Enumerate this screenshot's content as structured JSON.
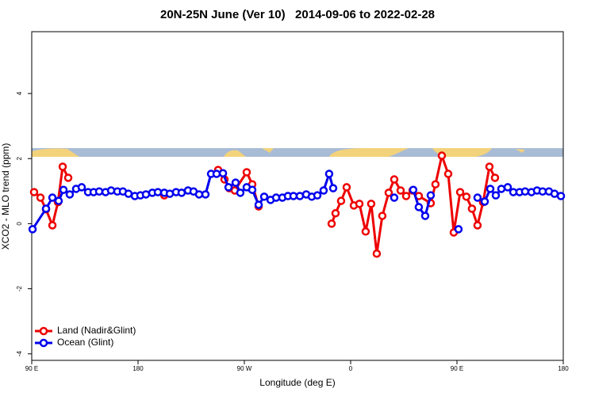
{
  "chart_data": {
    "type": "line",
    "title": "20N-25N June (Ver 10)   2014-09-06 to 2022-02-28",
    "x_label": "Longitude (deg E)",
    "y_label": "XCO2 - MLO trend (ppm)",
    "xlim": [
      -270,
      180
    ],
    "ylim": [
      -4.2,
      5.9
    ],
    "xticks": [
      {
        "value": -270,
        "label": "90 E"
      },
      {
        "value": -180,
        "label": "180"
      },
      {
        "value": -90,
        "label": "90 W"
      },
      0,
      {
        "value": 90,
        "label": "90 E"
      },
      180
    ],
    "yticks": [
      -4,
      -2,
      0,
      2,
      4
    ],
    "legend": "bottomleft",
    "series": [
      {
        "name": "Land (Nadir&Glint)",
        "color": "#ee0000",
        "x": [
          -268,
          -262.6,
          -257.9,
          -252.5,
          -247.8,
          -243.8,
          -239.1,
          null,
          -157.8,
          null,
          -112.2,
          -106.8,
          -102.8,
          -98.1,
          -88,
          -83.3,
          -77.9,
          null,
          -16.1,
          -12.8,
          -8.1,
          -3.4,
          2.7,
          7.4,
          12.7,
          17.4,
          22.1,
          26.8,
          32.2,
          36.9,
          42.3,
          47,
          52.4,
          57.7,
          67.8,
          71.8,
          77.2,
          82.6,
          87.3,
          92.7,
          98,
          102.7,
          107.4,
          112.1,
          117.5,
          122.2
        ],
        "values": [
          0.97,
          0.8,
          0.44,
          -0.05,
          0.66,
          1.75,
          1.41,
          null,
          0.87,
          null,
          1.65,
          1.36,
          1.09,
          1.02,
          1.58,
          1.21,
          0.53,
          null,
          0,
          0.32,
          0.7,
          1.12,
          0.56,
          0.61,
          -0.24,
          0.61,
          -0.92,
          0.24,
          0.95,
          1.36,
          1.02,
          0.85,
          1.02,
          0.85,
          0.63,
          1.21,
          2.09,
          1.53,
          -0.27,
          0.97,
          0.83,
          0.46,
          -0.05,
          0.66,
          1.75,
          1.41
        ]
      },
      {
        "name": "Ocean (Glint)",
        "color": "#0000ee",
        "x": [
          -269.3,
          -257.9,
          -252.5,
          -247.2,
          -243.1,
          -237.8,
          -232.4,
          -227.7,
          -222.3,
          -217.6,
          -212.9,
          -207.5,
          -202.8,
          -197.5,
          -192.8,
          -188.1,
          -182.7,
          -178,
          -173.3,
          -167.9,
          -163.2,
          -157.8,
          -153.1,
          -147.8,
          -143.1,
          -137.7,
          -133,
          -128.3,
          -122.9,
          -118.2,
          -113.5,
          -108.1,
          -103.4,
          -97.4,
          -93.4,
          -88,
          -83.3,
          -77.9,
          -73.2,
          -67.8,
          -63.1,
          -57.8,
          -53.1,
          -48.4,
          -43,
          -37.6,
          -32.9,
          -28.2,
          -22.9,
          -18.2,
          -14.8,
          null,
          36.9,
          null,
          53,
          57.7,
          63.1,
          67.8,
          null,
          91.3,
          null,
          107.4,
          113.5,
          118.2,
          122.9,
          127.6,
          133,
          137.7,
          143,
          147.7,
          153.1,
          157.8,
          162.5,
          167.9,
          172.6,
          178
        ],
        "values": [
          -0.17,
          0.46,
          0.8,
          0.7,
          1.04,
          0.9,
          1.07,
          1.12,
          0.97,
          0.97,
          0.99,
          0.97,
          1.02,
          0.99,
          0.99,
          0.92,
          0.85,
          0.87,
          0.9,
          0.95,
          0.97,
          0.95,
          0.92,
          0.97,
          0.95,
          1.02,
          0.99,
          0.9,
          0.9,
          1.53,
          1.53,
          1.55,
          1.12,
          1.26,
          0.95,
          1.12,
          1.04,
          0.58,
          0.83,
          0.73,
          0.8,
          0.8,
          0.85,
          0.85,
          0.85,
          0.9,
          0.83,
          0.87,
          1.02,
          1.53,
          1.09,
          null,
          0.8,
          null,
          1.04,
          0.51,
          0.24,
          0.87,
          null,
          -0.17,
          null,
          0.8,
          0.68,
          1.07,
          0.87,
          1.07,
          1.12,
          0.97,
          0.97,
          0.99,
          0.97,
          1.02,
          0.99,
          0.99,
          0.92,
          0.85
        ]
      }
    ]
  }
}
